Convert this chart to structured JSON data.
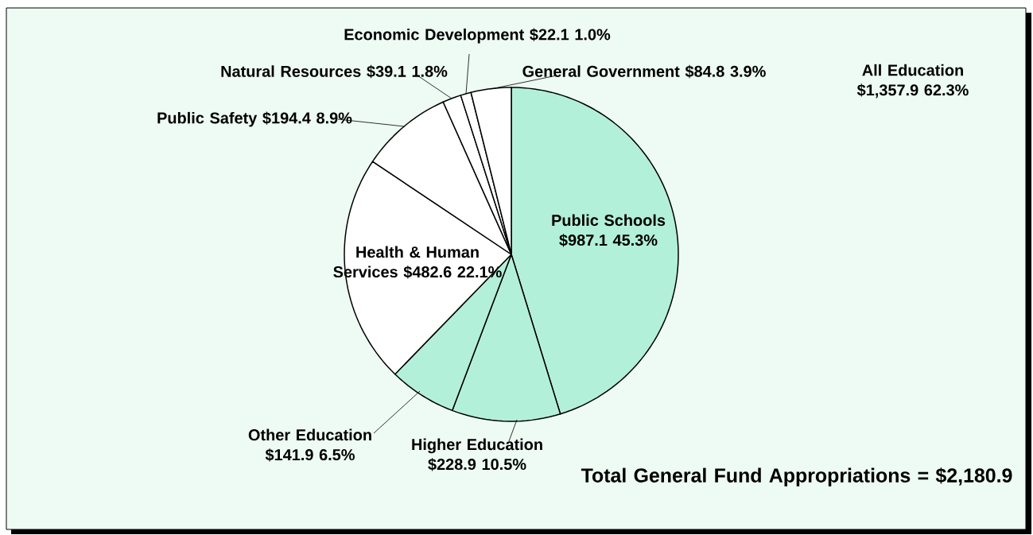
{
  "chart_data": {
    "type": "pie",
    "categories": [
      "Public Schools",
      "Higher Education",
      "Other Education",
      "Health & Human Services",
      "Public Safety",
      "Natural Resources",
      "Economic Development",
      "General Government"
    ],
    "values": [
      987.1,
      228.9,
      141.9,
      482.6,
      194.4,
      39.1,
      22.1,
      84.8
    ],
    "colors": [
      "#b3f0d9",
      "#b3f0d9",
      "#b3f0d9",
      "#ffffff",
      "#ffffff",
      "#ffffff",
      "#ffffff",
      "#ffffff"
    ],
    "value_labels": [
      "$987.1 45.3%",
      "$228.9 10.5%",
      "$141.9 6.5%",
      "$482.6 22.1%",
      "$194.4 8.9%",
      "$39.1 1.8%",
      "$22.1 1.0%",
      "$84.8 3.9%"
    ],
    "annotations": [
      "All Education $1,357.9 62.3%",
      "Total General Fund Appropriations = $2,180.9"
    ]
  }
}
